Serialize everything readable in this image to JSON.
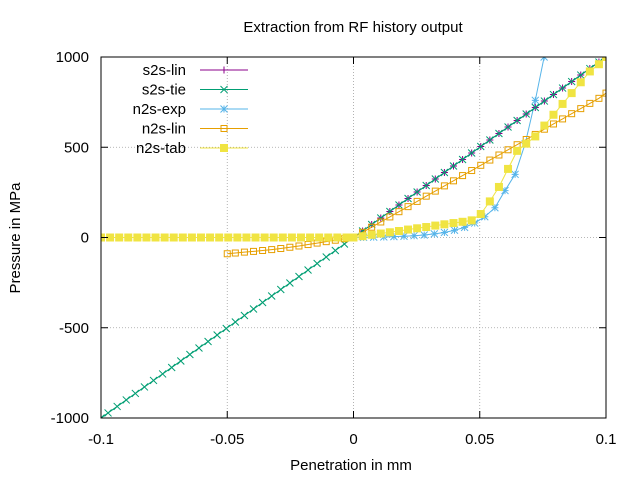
{
  "chart_data": {
    "type": "line",
    "title": "Extraction from RF history output",
    "xlabel": "Penetration in mm",
    "ylabel": "Pressure in MPa",
    "xlim": [
      -0.1,
      0.1
    ],
    "ylim": [
      -1000,
      1000
    ],
    "xticks": [
      -0.1,
      -0.05,
      0,
      0.05,
      0.1
    ],
    "xtick_labels": [
      "-0.1",
      "-0.05",
      "0",
      "0.05",
      "0.1"
    ],
    "yticks": [
      -1000,
      -500,
      0,
      500,
      1000
    ],
    "ytick_labels": [
      "-1000",
      "-500",
      "0",
      "500",
      "1000"
    ],
    "grid": true,
    "legend_position": "top-left",
    "series": [
      {
        "name": "s2s-lin",
        "color": "#8b008b",
        "marker": "plus",
        "x": [
          0.0,
          0.0036,
          0.0072,
          0.0108,
          0.0144,
          0.018,
          0.0216,
          0.0252,
          0.0288,
          0.0324,
          0.036,
          0.0396,
          0.0432,
          0.0468,
          0.0504,
          0.054,
          0.0576,
          0.0612,
          0.0648,
          0.0684,
          0.072,
          0.0756,
          0.0792,
          0.0828,
          0.0864,
          0.09,
          0.0936,
          0.0972,
          0.1
        ],
        "y": [
          0,
          36,
          72,
          108,
          144,
          180,
          216,
          252,
          288,
          324,
          360,
          396,
          432,
          468,
          504,
          540,
          576,
          612,
          648,
          684,
          720,
          756,
          792,
          828,
          864,
          900,
          936,
          972,
          1000
        ]
      },
      {
        "name": "s2s-tie",
        "color": "#009e73",
        "marker": "cross",
        "x": [
          -0.1,
          -0.0972,
          -0.0936,
          -0.09,
          -0.0864,
          -0.0828,
          -0.0792,
          -0.0756,
          -0.072,
          -0.0684,
          -0.0648,
          -0.0612,
          -0.0576,
          -0.054,
          -0.0504,
          -0.0468,
          -0.0432,
          -0.0396,
          -0.036,
          -0.0324,
          -0.0288,
          -0.0252,
          -0.0216,
          -0.018,
          -0.0144,
          -0.0108,
          -0.0072,
          -0.0036,
          0.0,
          0.0036,
          0.0072,
          0.0108,
          0.0144,
          0.018,
          0.0216,
          0.0252,
          0.0288,
          0.0324,
          0.036,
          0.0396,
          0.0432,
          0.0468,
          0.0504,
          0.054,
          0.0576,
          0.0612,
          0.0648,
          0.0684,
          0.072,
          0.0756,
          0.0792,
          0.0828,
          0.0864,
          0.09,
          0.0936,
          0.0972,
          0.1
        ],
        "y": [
          -1000,
          -972,
          -936,
          -900,
          -864,
          -828,
          -792,
          -756,
          -720,
          -684,
          -648,
          -612,
          -576,
          -540,
          -504,
          -468,
          -432,
          -396,
          -360,
          -324,
          -288,
          -252,
          -216,
          -180,
          -144,
          -108,
          -72,
          -36,
          0,
          36,
          72,
          108,
          144,
          180,
          216,
          252,
          288,
          324,
          360,
          396,
          432,
          468,
          504,
          540,
          576,
          612,
          648,
          684,
          720,
          756,
          792,
          828,
          864,
          900,
          936,
          972,
          1000
        ]
      },
      {
        "name": "n2s-exp",
        "color": "#56b4e9",
        "marker": "star",
        "x": [
          0.0,
          0.004,
          0.008,
          0.012,
          0.016,
          0.02,
          0.024,
          0.028,
          0.032,
          0.036,
          0.04,
          0.044,
          0.048,
          0.052,
          0.056,
          0.06,
          0.064,
          0.068,
          0.072,
          0.0755
        ],
        "y": [
          0,
          1,
          2,
          3,
          5,
          7,
          10,
          14,
          20,
          28,
          40,
          56,
          80,
          115,
          165,
          260,
          350,
          520,
          760,
          1000
        ]
      },
      {
        "name": "n2s-lin",
        "color": "#e69f00",
        "marker": "open-square",
        "x": [
          -0.05,
          -0.0468,
          -0.0432,
          -0.0396,
          -0.036,
          -0.0324,
          -0.0288,
          -0.0252,
          -0.0216,
          -0.018,
          -0.0144,
          -0.0108,
          -0.0072,
          -0.0036,
          0.0,
          0.0036,
          0.0072,
          0.0108,
          0.0144,
          0.018,
          0.0216,
          0.0252,
          0.0288,
          0.0324,
          0.036,
          0.0396,
          0.0432,
          0.0468,
          0.0504,
          0.054,
          0.0576,
          0.0612,
          0.0648,
          0.0684,
          0.072,
          0.0756,
          0.0792,
          0.0828,
          0.0864,
          0.09,
          0.0936,
          0.0972,
          0.1
        ],
        "y": [
          -90,
          -86,
          -81,
          -77,
          -72,
          -67,
          -61,
          -54,
          -47,
          -39,
          -31,
          -23,
          -15,
          -7,
          0,
          29,
          57,
          86,
          114,
          143,
          171,
          200,
          229,
          257,
          286,
          314,
          343,
          371,
          400,
          429,
          457,
          486,
          514,
          543,
          571,
          600,
          629,
          657,
          686,
          714,
          743,
          771,
          800
        ]
      },
      {
        "name": "n2s-tab",
        "color": "#f0e442",
        "marker": "filled-square",
        "x": [
          -0.1,
          -0.0964,
          -0.0928,
          -0.0892,
          -0.0856,
          -0.082,
          -0.0784,
          -0.0748,
          -0.0712,
          -0.0676,
          -0.064,
          -0.0604,
          -0.0568,
          -0.0532,
          -0.0496,
          -0.046,
          -0.0424,
          -0.0388,
          -0.0352,
          -0.0316,
          -0.028,
          -0.0244,
          -0.0208,
          -0.0172,
          -0.0136,
          -0.01,
          -0.0064,
          -0.0028,
          0.0,
          0.0036,
          0.0072,
          0.0108,
          0.0144,
          0.018,
          0.0216,
          0.0252,
          0.0288,
          0.0324,
          0.036,
          0.0396,
          0.0432,
          0.0468,
          0.0504,
          0.054,
          0.0576,
          0.0612,
          0.0648,
          0.0684,
          0.072,
          0.0756,
          0.0792,
          0.0828,
          0.0864,
          0.09,
          0.0936,
          0.0972,
          0.1
        ],
        "y": [
          0,
          0,
          0,
          0,
          0,
          0,
          0,
          0,
          0,
          0,
          0,
          0,
          0,
          0,
          0,
          0,
          0,
          0,
          0,
          0,
          0,
          0,
          0,
          0,
          0,
          0,
          0,
          0,
          0,
          7,
          15,
          22,
          29,
          36,
          44,
          51,
          58,
          66,
          73,
          80,
          87,
          95,
          130,
          200,
          280,
          380,
          480,
          520,
          560,
          620,
          680,
          740,
          800,
          860,
          920,
          960,
          1000
        ]
      }
    ]
  }
}
